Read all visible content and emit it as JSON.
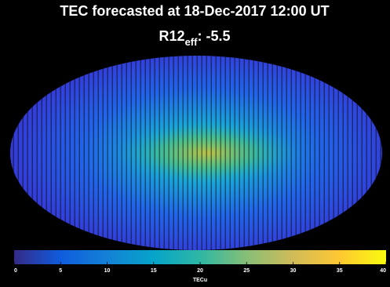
{
  "header": {
    "title": "TEC forecasted at 18-Dec-2017 12:00 UT",
    "r12_label": "R12",
    "r12_subscript": "eff",
    "r12_value": ": -5.5"
  },
  "colorbar": {
    "label": "TECu",
    "lim": [
      0,
      40
    ],
    "ticks": [
      0,
      5,
      10,
      15,
      20,
      25,
      30,
      35,
      40
    ],
    "colors": [
      "#352a87",
      "#0f5cdd",
      "#1481d6",
      "#06a4ca",
      "#2eb7a4",
      "#87bf77",
      "#d1bb59",
      "#fec832",
      "#f9fb0e"
    ]
  }
}
